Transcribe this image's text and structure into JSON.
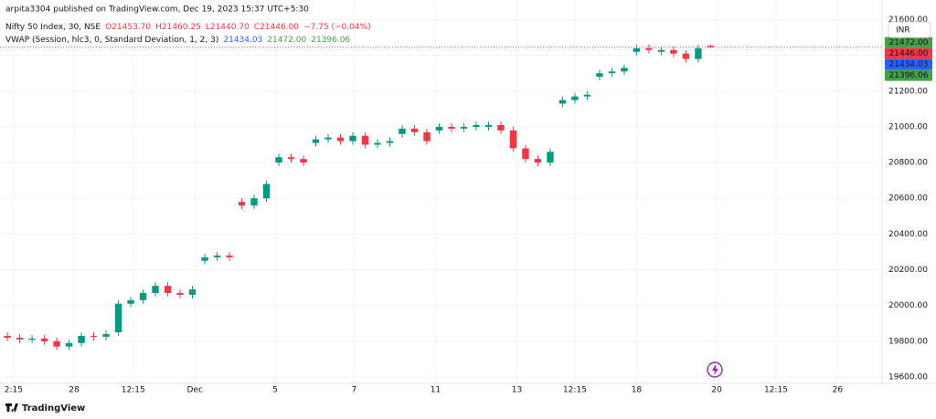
{
  "header": {
    "publisher": "arpita3304 published on TradingView.com, Dec 19, 2023 15:37 UTC+5:30",
    "symbol": "Nifty 50 Index, 30, NSE",
    "ohlc": [
      "O21453.70",
      "H21460.25",
      "L21440.70",
      "C21446.00",
      "−7.75 (−0.04%)"
    ],
    "vwap_label": "VWAP (Session, hlc3, 0, Standard Deviation, 1, 2, 3)",
    "vwap_values": [
      {
        "text": "21434.03",
        "color": "#2962ff"
      },
      {
        "text": "21472.00",
        "color": "#43a047"
      },
      {
        "text": "21396.06",
        "color": "#43a047"
      }
    ]
  },
  "currency": "INR",
  "footer": "TradingView",
  "chart_data": {
    "type": "candlestick",
    "up_color": "#089981",
    "down_color": "#f23645",
    "grid": true,
    "open": [
      19830,
      19820,
      19808,
      19815,
      19800,
      19770,
      19790,
      19830,
      19825,
      19850,
      20010,
      20030,
      20070,
      20110,
      20070,
      20060,
      20250,
      20270,
      20280,
      20580,
      20560,
      20600,
      20800,
      20830,
      20820,
      20910,
      20930,
      20940,
      20920,
      20950,
      20900,
      20910,
      20960,
      20990,
      20970,
      20980,
      21000,
      20990,
      21000,
      21000,
      21010,
      20980,
      20880,
      20820,
      20800,
      21130,
      21150,
      21170,
      21280,
      21300,
      21310,
      21420,
      21440,
      21420,
      21430,
      21410,
      21380,
      21453.7
    ],
    "high": [
      19850,
      19840,
      19835,
      19835,
      19820,
      19810,
      19850,
      19850,
      19860,
      20030,
      20050,
      20090,
      20130,
      20130,
      20090,
      20110,
      20290,
      20300,
      20300,
      20600,
      20620,
      20700,
      20850,
      20850,
      20840,
      20950,
      20960,
      20960,
      20970,
      20970,
      20930,
      20940,
      21010,
      21010,
      20990,
      21020,
      21020,
      21020,
      21030,
      21030,
      21030,
      21000,
      20900,
      20840,
      20880,
      21170,
      21190,
      21200,
      21320,
      21330,
      21350,
      21460,
      21460,
      21450,
      21450,
      21430,
      21460,
      21460.25
    ],
    "low": [
      19800,
      19790,
      19790,
      19780,
      19750,
      19750,
      19770,
      19805,
      19805,
      19830,
      19990,
      20010,
      20050,
      20050,
      20040,
      20040,
      20230,
      20250,
      20250,
      20540,
      20540,
      20580,
      20780,
      20800,
      20780,
      20890,
      20910,
      20900,
      20900,
      20880,
      20880,
      20890,
      20940,
      20950,
      20900,
      20960,
      20970,
      20970,
      20980,
      20980,
      20960,
      20860,
      20800,
      20780,
      20780,
      21110,
      21130,
      21150,
      21260,
      21280,
      21290,
      21400,
      21410,
      21400,
      21390,
      21360,
      21360,
      21440.7
    ],
    "close": [
      19820,
      19810,
      19815,
      19800,
      19770,
      19790,
      19830,
      19825,
      19840,
      20010,
      20030,
      20070,
      20110,
      20070,
      20060,
      20090,
      20270,
      20280,
      20270,
      20560,
      20600,
      20680,
      20830,
      20820,
      20800,
      20930,
      20940,
      20920,
      20950,
      20900,
      20910,
      20920,
      20990,
      20970,
      20920,
      21000,
      20990,
      21000,
      21010,
      21010,
      20980,
      20880,
      20820,
      20800,
      20860,
      21150,
      21170,
      21180,
      21300,
      21310,
      21330,
      21440,
      21430,
      21430,
      21410,
      21380,
      21440,
      21446
    ],
    "xlim": [
      -0.6,
      70.9
    ],
    "xticks": [
      {
        "value": 0.5,
        "label": "2:15"
      },
      {
        "value": 5.4,
        "label": "28"
      },
      {
        "value": 10.2,
        "label": "12:15"
      },
      {
        "value": 15.2,
        "label": "Dec"
      },
      {
        "value": 21.7,
        "label": "5"
      },
      {
        "value": 28.1,
        "label": "7"
      },
      {
        "value": 34.7,
        "label": "11"
      },
      {
        "value": 41.3,
        "label": "13"
      },
      {
        "value": 46,
        "label": "12:15"
      },
      {
        "value": 51,
        "label": "18"
      },
      {
        "value": 57.5,
        "label": "20"
      },
      {
        "value": 62.3,
        "label": "12:15"
      },
      {
        "value": 67.3,
        "label": "26"
      }
    ],
    "ylim": [
      19564,
      21710
    ],
    "yticks": [
      {
        "value": 19600,
        "label": "19600.00"
      },
      {
        "value": 19800,
        "label": "19800.00"
      },
      {
        "value": 20000,
        "label": "20000.00"
      },
      {
        "value": 20200,
        "label": "20200.00"
      },
      {
        "value": 20400,
        "label": "20400.00"
      },
      {
        "value": 20600,
        "label": "20600.00"
      },
      {
        "value": 20800,
        "label": "20800.00"
      },
      {
        "value": 21000,
        "label": "21000.00"
      },
      {
        "value": 21200,
        "label": "21200.00"
      },
      {
        "value": 21400,
        "label": "21400.00"
      },
      {
        "value": 21600,
        "label": "21600.00"
      }
    ],
    "price_labels": [
      {
        "value": 21472,
        "label": "21472.00",
        "color": "#43a047"
      },
      {
        "value": 21446,
        "label": "21446.00",
        "color": "#f23645"
      },
      {
        "value": 21434.03,
        "label": "21434.03",
        "color": "#2962ff"
      },
      {
        "value": 21396.06,
        "label": "21396.06",
        "color": "#43a047"
      }
    ]
  }
}
